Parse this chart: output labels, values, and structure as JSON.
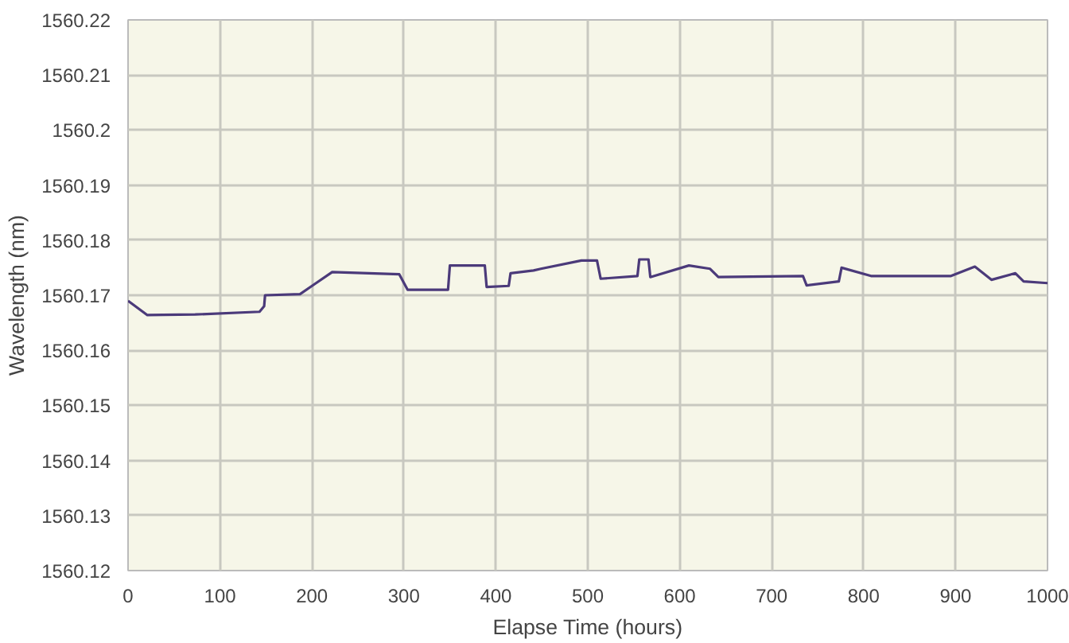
{
  "chart_data": {
    "type": "line",
    "xlabel": "Elapse Time (hours)",
    "ylabel": "Wavelength (nm)",
    "series": [
      {
        "color": "#4b3a7a",
        "x": [
          0,
          21,
          73,
          143,
          148,
          149,
          187,
          201,
          222,
          295,
          304,
          348,
          350,
          388,
          390,
          414,
          416,
          441,
          449,
          493,
          510,
          514,
          554,
          556,
          566,
          568,
          610,
          633,
          642,
          734,
          738,
          773,
          776,
          808,
          895,
          921,
          939,
          965,
          974,
          1000
        ],
        "values": [
          1560.169,
          1560.1664,
          1560.1665,
          1560.167,
          1560.168,
          1560.17,
          1560.1702,
          1560.1718,
          1560.1742,
          1560.1738,
          1560.171,
          1560.171,
          1560.1754,
          1560.1754,
          1560.1715,
          1560.1717,
          1560.174,
          1560.1745,
          1560.1748,
          1560.1763,
          1560.1763,
          1560.173,
          1560.1735,
          1560.1765,
          1560.1765,
          1560.1733,
          1560.1754,
          1560.1748,
          1560.1733,
          1560.1735,
          1560.1718,
          1560.1725,
          1560.175,
          1560.1735,
          1560.1735,
          1560.1752,
          1560.1728,
          1560.174,
          1560.1725,
          1560.1722
        ]
      }
    ],
    "xlim": [
      0,
      1000
    ],
    "xticks": [
      0,
      100,
      200,
      300,
      400,
      500,
      600,
      700,
      800,
      900,
      1000
    ],
    "ylim": [
      1560.12,
      1560.22
    ],
    "yticks": [
      1560.12,
      1560.13,
      1560.14,
      1560.15,
      1560.16,
      1560.17,
      1560.18,
      1560.19,
      1560.2,
      1560.21,
      1560.22
    ],
    "grid": true
  }
}
